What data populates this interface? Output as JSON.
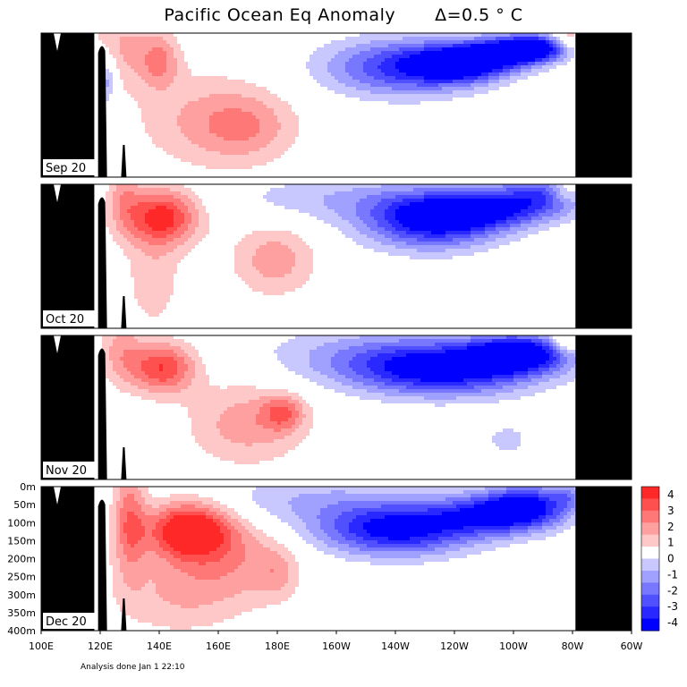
{
  "title": {
    "text": "Pacific Ocean Eq Anomaly",
    "interval": "Δ=0.5 ° C"
  },
  "footnote": "Analysis done Jan 1 22:10",
  "chart_data": {
    "type": "heatmap",
    "xlabel": "",
    "ylabel": "",
    "x_ticks": [
      "100E",
      "120E",
      "140E",
      "160E",
      "180E",
      "160W",
      "140W",
      "120W",
      "100W",
      "80W",
      "60W"
    ],
    "y_ticks": [
      "0m",
      "50m",
      "100m",
      "150m",
      "200m",
      "250m",
      "300m",
      "350m",
      "400m"
    ],
    "xlim_lon_east": [
      100,
      300
    ],
    "ylim_depth_m": [
      0,
      400
    ],
    "contour_interval": 0.5,
    "panels": [
      {
        "month": "Sep 20",
        "cores": [
          {
            "lon": 140,
            "depth": 75,
            "sx": 5,
            "sy": 55,
            "amp": 1.5
          },
          {
            "lon": 127,
            "depth": 35,
            "sx": 7,
            "sy": 80,
            "amp": 1.0
          },
          {
            "lon": 153,
            "depth": 240,
            "sx": 16,
            "sy": 95,
            "amp": 0.9
          },
          {
            "lon": 170,
            "depth": 260,
            "sx": 12,
            "sy": 70,
            "amp": 1.2
          },
          {
            "lon": 122,
            "depth": 130,
            "sx": 2.5,
            "sy": 50,
            "amp": -1.5
          },
          {
            "lon": 222,
            "depth": 95,
            "sx": 18,
            "sy": 55,
            "amp": -2.6
          },
          {
            "lon": 242,
            "depth": 85,
            "sx": 11,
            "sy": 35,
            "amp": -3.3
          },
          {
            "lon": 257,
            "depth": 55,
            "sx": 10,
            "sy": 30,
            "amp": -2.9
          },
          {
            "lon": 268,
            "depth": 40,
            "sx": 8,
            "sy": 25,
            "amp": -3.2
          },
          {
            "lon": 278,
            "depth": 20,
            "sx": 4,
            "sy": 25,
            "amp": 1.3
          }
        ]
      },
      {
        "month": "Oct 20",
        "cores": [
          {
            "lon": 141,
            "depth": 90,
            "sx": 9,
            "sy": 55,
            "amp": 2.7
          },
          {
            "lon": 128,
            "depth": 30,
            "sx": 4,
            "sy": 70,
            "amp": 1.0
          },
          {
            "lon": 138,
            "depth": 260,
            "sx": 7,
            "sy": 110,
            "amp": 0.8
          },
          {
            "lon": 179,
            "depth": 210,
            "sx": 10,
            "sy": 70,
            "amp": 1.3
          },
          {
            "lon": 232,
            "depth": 100,
            "sx": 16,
            "sy": 55,
            "amp": -3.3
          },
          {
            "lon": 250,
            "depth": 75,
            "sx": 14,
            "sy": 35,
            "amp": -2.3
          },
          {
            "lon": 270,
            "depth": 30,
            "sx": 12,
            "sy": 40,
            "amp": -2.2
          },
          {
            "lon": 200,
            "depth": 40,
            "sx": 25,
            "sy": 45,
            "amp": -0.9
          },
          {
            "lon": 278,
            "depth": 20,
            "sx": 4,
            "sy": 25,
            "amp": 1.3
          }
        ]
      },
      {
        "month": "Nov 20",
        "cores": [
          {
            "lon": 141,
            "depth": 90,
            "sx": 8,
            "sy": 50,
            "amp": 2.5
          },
          {
            "lon": 127,
            "depth": 35,
            "sx": 5,
            "sy": 70,
            "amp": 1.1
          },
          {
            "lon": 170,
            "depth": 245,
            "sx": 14,
            "sy": 80,
            "amp": 1.3
          },
          {
            "lon": 182,
            "depth": 215,
            "sx": 5,
            "sy": 35,
            "amp": 1.5
          },
          {
            "lon": 236,
            "depth": 95,
            "sx": 22,
            "sy": 50,
            "amp": -3.4
          },
          {
            "lon": 262,
            "depth": 50,
            "sx": 12,
            "sy": 35,
            "amp": -3.6
          },
          {
            "lon": 210,
            "depth": 50,
            "sx": 25,
            "sy": 55,
            "amp": -1.0
          },
          {
            "lon": 258,
            "depth": 290,
            "sx": 5,
            "sy": 30,
            "amp": -0.8
          },
          {
            "lon": 278,
            "depth": 20,
            "sx": 4,
            "sy": 25,
            "amp": 1.3
          }
        ]
      },
      {
        "month": "Dec 20",
        "cores": [
          {
            "lon": 150,
            "depth": 120,
            "sx": 10,
            "sy": 55,
            "amp": 3.3
          },
          {
            "lon": 130,
            "depth": 95,
            "sx": 4,
            "sy": 110,
            "amp": 1.8
          },
          {
            "lon": 165,
            "depth": 200,
            "sx": 14,
            "sy": 90,
            "amp": 1.2
          },
          {
            "lon": 145,
            "depth": 300,
            "sx": 15,
            "sy": 80,
            "amp": 0.9
          },
          {
            "lon": 180,
            "depth": 240,
            "sx": 5,
            "sy": 50,
            "amp": 0.8
          },
          {
            "lon": 220,
            "depth": 120,
            "sx": 18,
            "sy": 50,
            "amp": -3.3
          },
          {
            "lon": 252,
            "depth": 80,
            "sx": 14,
            "sy": 40,
            "amp": -2.6
          },
          {
            "lon": 265,
            "depth": 50,
            "sx": 10,
            "sy": 40,
            "amp": -2.6
          },
          {
            "lon": 190,
            "depth": 40,
            "sx": 25,
            "sy": 50,
            "amp": -1.0
          },
          {
            "lon": 278,
            "depth": 25,
            "sx": 3,
            "sy": 25,
            "amp": -1.0
          }
        ]
      }
    ],
    "land": {
      "west_land_lon": [
        100,
        118
      ],
      "sumatra_ridge_lon": 120.5,
      "small_ridge_lon": 128,
      "east_land_lon": [
        281,
        300
      ]
    },
    "colorbar": {
      "labels": [
        "4",
        "3",
        "2",
        "1",
        "0",
        "-1",
        "-2",
        "-3",
        "-4"
      ],
      "colors": [
        "#ff2828",
        "#ff5050",
        "#ff7878",
        "#ffa0a0",
        "#ffc8c8",
        "#ffffff",
        "#c8c8ff",
        "#a0a0ff",
        "#7878ff",
        "#5050ff",
        "#2828ff",
        "#0000ff"
      ]
    }
  }
}
